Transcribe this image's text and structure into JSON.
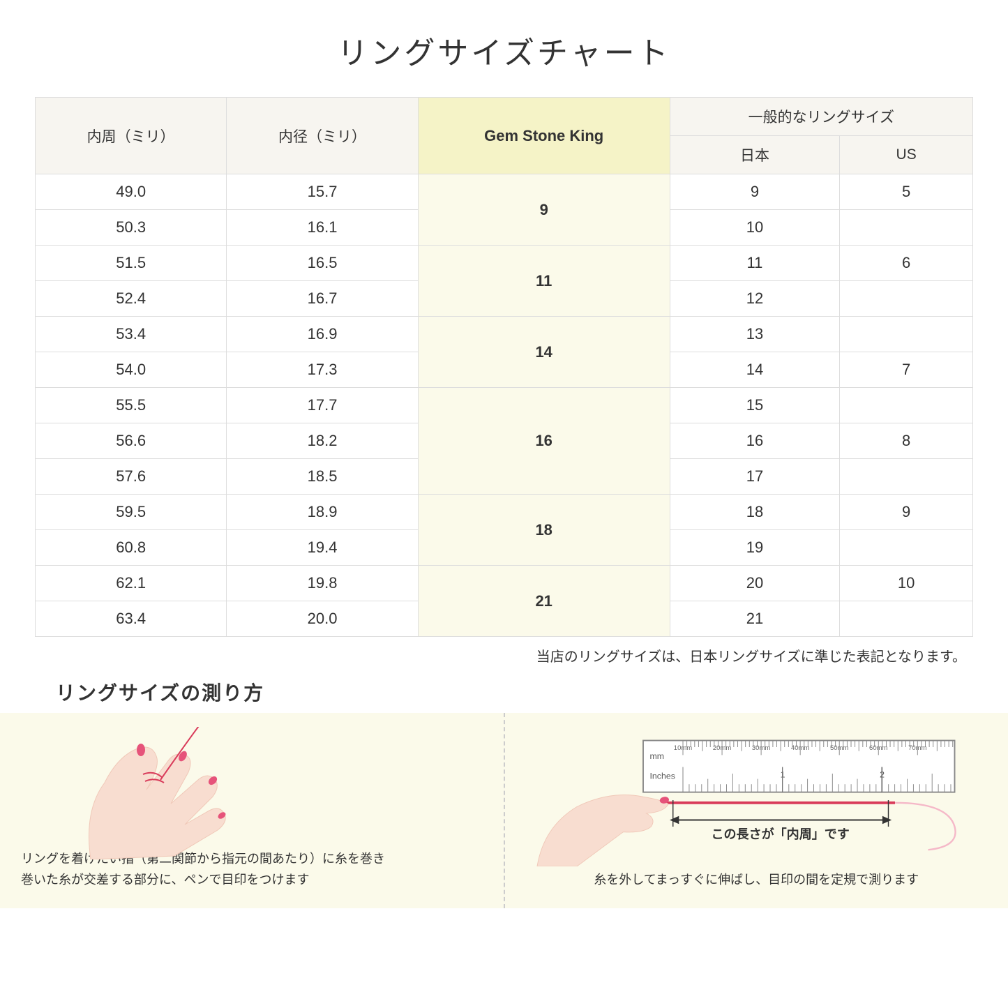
{
  "title": "リングサイズチャート",
  "headers": {
    "circumference": "内周（ミリ）",
    "diameter": "内径（ミリ）",
    "gsk": "Gem Stone King",
    "general": "一般的なリングサイズ",
    "jp": "日本",
    "us": "US"
  },
  "groups": [
    {
      "gsk": "9",
      "rows": [
        {
          "c": "49.0",
          "d": "15.7",
          "jp": "9",
          "us": "5"
        },
        {
          "c": "50.3",
          "d": "16.1",
          "jp": "10",
          "us": ""
        }
      ]
    },
    {
      "gsk": "11",
      "rows": [
        {
          "c": "51.5",
          "d": "16.5",
          "jp": "11",
          "us": "6"
        },
        {
          "c": "52.4",
          "d": "16.7",
          "jp": "12",
          "us": ""
        }
      ]
    },
    {
      "gsk": "14",
      "rows": [
        {
          "c": "53.4",
          "d": "16.9",
          "jp": "13",
          "us": ""
        },
        {
          "c": "54.0",
          "d": "17.3",
          "jp": "14",
          "us": "7"
        }
      ]
    },
    {
      "gsk": "16",
      "rows": [
        {
          "c": "55.5",
          "d": "17.7",
          "jp": "15",
          "us": ""
        },
        {
          "c": "56.6",
          "d": "18.2",
          "jp": "16",
          "us": "8"
        },
        {
          "c": "57.6",
          "d": "18.5",
          "jp": "17",
          "us": ""
        }
      ]
    },
    {
      "gsk": "18",
      "rows": [
        {
          "c": "59.5",
          "d": "18.9",
          "jp": "18",
          "us": "9"
        },
        {
          "c": "60.8",
          "d": "19.4",
          "jp": "19",
          "us": ""
        }
      ]
    },
    {
      "gsk": "21",
      "rows": [
        {
          "c": "62.1",
          "d": "19.8",
          "jp": "20",
          "us": "10"
        },
        {
          "c": "63.4",
          "d": "20.0",
          "jp": "21",
          "us": ""
        }
      ]
    }
  ],
  "note": "当店のリングサイズは、日本リングサイズに準じた表記となります。",
  "howto": {
    "title": "リングサイズの測り方",
    "left_caption": "リングを着けたい指（第二関節から指元の間あたり）に糸を巻き\n巻いた糸が交差する部分に、ペンで目印をつけます",
    "right_caption": "糸を外してまっすぐに伸ばし、目印の間を定規で測ります",
    "ruler_label_mm": "mm",
    "ruler_label_in": "Inches",
    "ruler_mm_ticks": [
      "10mm",
      "20mm",
      "30mm",
      "40mm",
      "50mm",
      "60mm",
      "70mm"
    ],
    "arrow_label": "この長さが「内周」です"
  },
  "colors": {
    "header_bg": "#f7f5f0",
    "gsk_header_bg": "#f5f3c7",
    "gsk_cell_bg": "#fbfaea",
    "border": "#dddddd",
    "panel_bg": "#fbfaea",
    "skin": "#f8ddd0",
    "skin_dark": "#f0c8b8",
    "nail": "#e6537a",
    "thread": "#d93b5a",
    "ruler_border": "#888888"
  }
}
